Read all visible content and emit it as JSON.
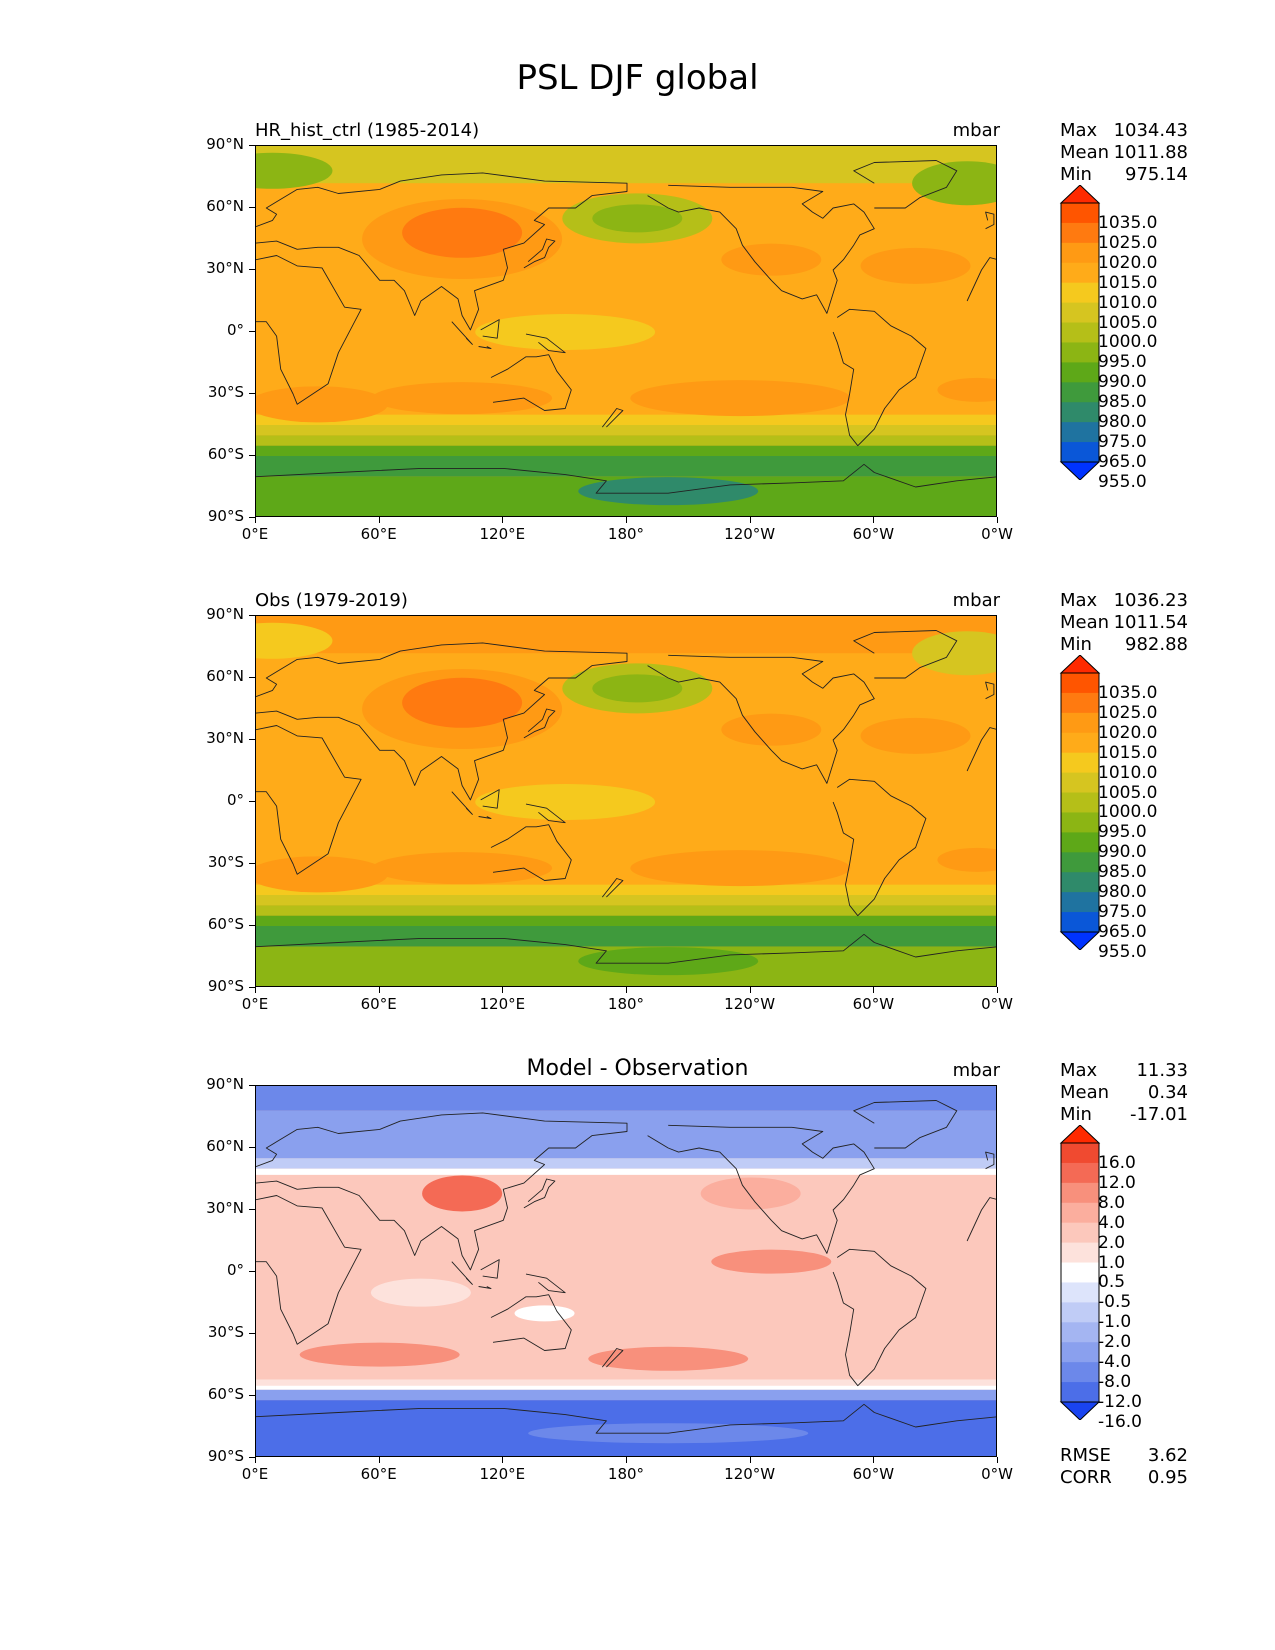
{
  "title": "PSL DJF global",
  "units": "mbar",
  "axes": {
    "lat_labels": [
      "90°N",
      "60°N",
      "30°N",
      "0°",
      "30°S",
      "60°S",
      "90°S"
    ],
    "lon_labels": [
      "0°E",
      "60°E",
      "120°E",
      "180°",
      "120°W",
      "60°W",
      "0°W"
    ]
  },
  "panels": [
    {
      "title_left": "HR_hist_ctrl (1985-2014)",
      "title_center": "",
      "units": "mbar",
      "stats": [
        {
          "k": "Max",
          "v": "1034.43"
        },
        {
          "k": "Mean",
          "v": "1011.88"
        },
        {
          "k": "Min",
          "v": "975.14"
        }
      ],
      "cbar_labels": [
        "1035.0",
        "1025.0",
        "1020.0",
        "1015.0",
        "1010.0",
        "1005.0",
        "1000.0",
        "995.0",
        "990.0",
        "985.0",
        "980.0",
        "975.0",
        "965.0",
        "955.0"
      ],
      "cbar_colors": [
        "#ff2a00",
        "#ff5500",
        "#ff7a10",
        "#ff9a14",
        "#ffab19",
        "#f5c91e",
        "#d6c520",
        "#b5bf18",
        "#8cb514",
        "#5ea818",
        "#3f9a3c",
        "#2f8a6a",
        "#1f73a0",
        "#0a57d8",
        "#0033ff"
      ]
    },
    {
      "title_left": "Obs (1979-2019)",
      "title_center": "",
      "units": "mbar",
      "stats": [
        {
          "k": "Max",
          "v": "1036.23"
        },
        {
          "k": "Mean",
          "v": "1011.54"
        },
        {
          "k": "Min",
          "v": "982.88"
        }
      ],
      "cbar_labels": [
        "1035.0",
        "1025.0",
        "1020.0",
        "1015.0",
        "1010.0",
        "1005.0",
        "1000.0",
        "995.0",
        "990.0",
        "985.0",
        "980.0",
        "975.0",
        "965.0",
        "955.0"
      ],
      "cbar_colors": [
        "#ff2a00",
        "#ff5500",
        "#ff7a10",
        "#ff9a14",
        "#ffab19",
        "#f5c91e",
        "#d6c520",
        "#b5bf18",
        "#8cb514",
        "#5ea818",
        "#3f9a3c",
        "#2f8a6a",
        "#1f73a0",
        "#0a57d8",
        "#0033ff"
      ]
    },
    {
      "title_left": "",
      "title_center": "Model - Observation",
      "units": "mbar",
      "stats": [
        {
          "k": "Max",
          "v": "11.33"
        },
        {
          "k": "Mean",
          "v": "0.34"
        },
        {
          "k": "Min",
          "v": "-17.01"
        }
      ],
      "cbar_labels": [
        "16.0",
        "12.0",
        "8.0",
        "4.0",
        "2.0",
        "1.0",
        "0.5",
        "-0.5",
        "-1.0",
        "-2.0",
        "-4.0",
        "-8.0",
        "-12.0",
        "-16.0"
      ],
      "cbar_colors": [
        "#ff2a00",
        "#f04a30",
        "#f46a55",
        "#f8907c",
        "#fbae9e",
        "#fcc8bc",
        "#fde2dc",
        "#ffffff",
        "#dde4fb",
        "#c0ccf6",
        "#a4b5f2",
        "#8aa0ee",
        "#6c88ea",
        "#4c6ee8",
        "#1a44f0"
      ],
      "metrics": [
        {
          "k": "RMSE",
          "v": "3.62"
        },
        {
          "k": "CORR",
          "v": "0.95"
        }
      ]
    }
  ],
  "chart_data": [
    {
      "type": "heatmap",
      "title": "HR_hist_ctrl (1985-2014)",
      "units": "mbar",
      "stats": {
        "max": 1034.43,
        "mean": 1011.88,
        "min": 975.14
      },
      "levels": [
        955,
        965,
        975,
        980,
        985,
        990,
        995,
        1000,
        1005,
        1010,
        1015,
        1020,
        1025,
        1035
      ],
      "xlim": [
        0,
        360
      ],
      "ylim": [
        -90,
        90
      ]
    },
    {
      "type": "heatmap",
      "title": "Obs (1979-2019)",
      "units": "mbar",
      "stats": {
        "max": 1036.23,
        "mean": 1011.54,
        "min": 982.88
      },
      "levels": [
        955,
        965,
        975,
        980,
        985,
        990,
        995,
        1000,
        1005,
        1010,
        1015,
        1020,
        1025,
        1035
      ],
      "xlim": [
        0,
        360
      ],
      "ylim": [
        -90,
        90
      ]
    },
    {
      "type": "heatmap",
      "title": "Model - Observation",
      "units": "mbar",
      "stats": {
        "max": 11.33,
        "mean": 0.34,
        "min": -17.01,
        "rmse": 3.62,
        "corr": 0.95
      },
      "levels": [
        -16,
        -12,
        -8,
        -4,
        -2,
        -1,
        -0.5,
        0.5,
        1,
        2,
        4,
        8,
        12,
        16
      ],
      "xlim": [
        0,
        360
      ],
      "ylim": [
        -90,
        90
      ]
    }
  ]
}
